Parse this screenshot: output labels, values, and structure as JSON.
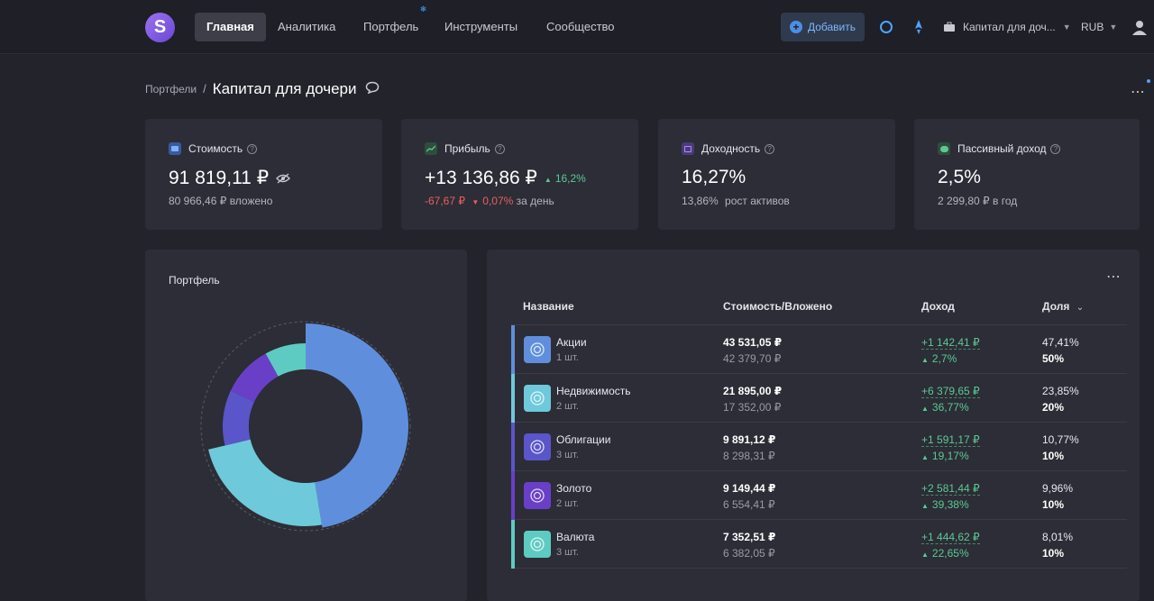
{
  "nav": {
    "logo_letter": "S",
    "items": [
      {
        "label": "Главная",
        "active": true
      },
      {
        "label": "Аналитика",
        "active": false
      },
      {
        "label": "Портфель",
        "active": false
      },
      {
        "label": "Инструменты",
        "active": false
      },
      {
        "label": "Сообщество",
        "active": false
      }
    ],
    "add_label": "Добавить",
    "portfolio_label": "Капитал для доч...",
    "currency": "RUB"
  },
  "breadcrumb": {
    "parent": "Портфели",
    "separator": "/",
    "title": "Капитал для дочери"
  },
  "stats": {
    "value": {
      "label": "Стоимость",
      "amount": "91 819,11 ₽",
      "sub": "80 966,46 ₽ вложено"
    },
    "profit": {
      "label": "Прибыль",
      "amount": "+13 136,86 ₽",
      "pct": "16,2%",
      "day_amount": "-67,67 ₽",
      "day_pct": "0,07%",
      "day_suffix": "за день"
    },
    "yield": {
      "label": "Доходность",
      "amount": "16,27%",
      "sub_value": "13,86%",
      "sub_label": "рост активов"
    },
    "passive": {
      "label": "Пассивный доход",
      "amount": "2,5%",
      "sub": "2 299,80 ₽ в год"
    }
  },
  "portfolio_panel": {
    "title": "Портфель"
  },
  "table": {
    "headers": {
      "name": "Название",
      "value": "Стоимость/Вложено",
      "income": "Доход",
      "share": "Доля"
    },
    "rows": [
      {
        "name": "Акции",
        "qty": "1 шт.",
        "value": "43 531,05 ₽",
        "invested": "42 379,70 ₽",
        "income": "+1 142,41 ₽",
        "income_pct": "2,7%",
        "share": "47,41%",
        "target": "50%",
        "color": "#5f8fdc"
      },
      {
        "name": "Недвижимость",
        "qty": "2 шт.",
        "value": "21 895,00 ₽",
        "invested": "17 352,00 ₽",
        "income": "+6 379,65 ₽",
        "income_pct": "36,77%",
        "share": "23,85%",
        "target": "20%",
        "color": "#6ec9db"
      },
      {
        "name": "Облигации",
        "qty": "3 шт.",
        "value": "9 891,12 ₽",
        "invested": "8 298,31 ₽",
        "income": "+1 591,17 ₽",
        "income_pct": "19,17%",
        "share": "10,77%",
        "target": "10%",
        "color": "#5a55c9"
      },
      {
        "name": "Золото",
        "qty": "2 шт.",
        "value": "9 149,44 ₽",
        "invested": "6 554,41 ₽",
        "income": "+2 581,44 ₽",
        "income_pct": "39,38%",
        "share": "9,96%",
        "target": "10%",
        "color": "#6a3fc7"
      },
      {
        "name": "Валюта",
        "qty": "3 шт.",
        "value": "7 352,51 ₽",
        "invested": "6 382,05 ₽",
        "income": "+1 444,62 ₽",
        "income_pct": "22,65%",
        "share": "8,01%",
        "target": "10%",
        "color": "#5ecbc2"
      }
    ]
  },
  "chart_data": {
    "type": "pie",
    "categories": [
      "Акции",
      "Недвижимость",
      "Облигации",
      "Золото",
      "Валюта"
    ],
    "values": [
      47.41,
      23.85,
      10.77,
      9.96,
      8.01
    ],
    "colors": [
      "#5f8fdc",
      "#6ec9db",
      "#5a55c9",
      "#6a3fc7",
      "#5ecbc2"
    ]
  }
}
